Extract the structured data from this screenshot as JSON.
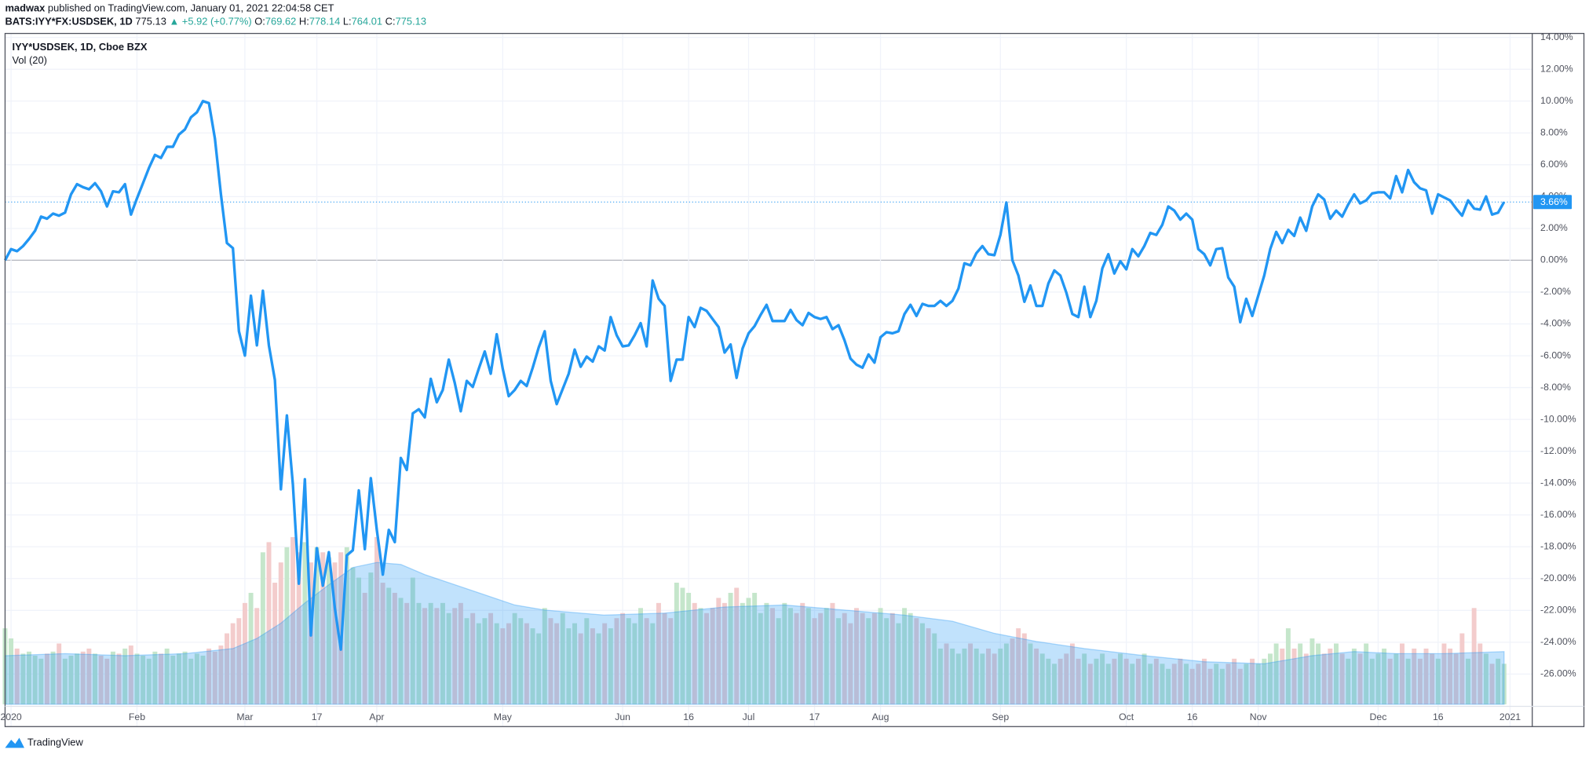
{
  "header": {
    "author": "madwax",
    "published": "published on TradingView.com, January 01, 2021 22:04:58 CET",
    "symbol": "BATS:IYY*FX:USDSEK, 1D",
    "last": "775.13",
    "change": "▲ +5.92 (+0.77%)",
    "ohlc": [
      {
        "label": "O:",
        "value": "769.62"
      },
      {
        "label": "H:",
        "value": "778.14"
      },
      {
        "label": "L:",
        "value": "764.01"
      },
      {
        "label": "C:",
        "value": "775.13"
      }
    ]
  },
  "chart_data": {
    "type": "line",
    "grid": true,
    "ylim": [
      -29.3,
      14.25
    ],
    "yticks": [
      {
        "value": -26,
        "label": "-26.00%"
      },
      {
        "value": -24,
        "label": "-24.00%"
      },
      {
        "value": -22,
        "label": "-22.00%"
      },
      {
        "value": -20,
        "label": "-20.00%"
      },
      {
        "value": -18,
        "label": "-18.00%"
      },
      {
        "value": -16,
        "label": "-16.00%"
      },
      {
        "value": -14,
        "label": "-14.00%"
      },
      {
        "value": -12,
        "label": "-12.00%"
      },
      {
        "value": -10,
        "label": "-10.00%"
      },
      {
        "value": -8,
        "label": "-8.00%"
      },
      {
        "value": -6,
        "label": "-6.00%"
      },
      {
        "value": -4,
        "label": "-4.00%"
      },
      {
        "value": -2,
        "label": "-2.00%"
      },
      {
        "value": 0,
        "label": "0.00%"
      },
      {
        "value": 2,
        "label": "2.00%"
      },
      {
        "value": 4,
        "label": "4.00%"
      },
      {
        "value": 6,
        "label": "6.00%"
      },
      {
        "value": 8,
        "label": "8.00%"
      },
      {
        "value": 10,
        "label": "10.00%"
      },
      {
        "value": 12,
        "label": "12.00%"
      },
      {
        "value": 14,
        "label": "14.00%"
      }
    ],
    "xlim": [
      0,
      254.7
    ],
    "xticks": [
      {
        "value": 1,
        "label": "2020"
      },
      {
        "value": 22,
        "label": "Feb"
      },
      {
        "value": 40,
        "label": "Mar"
      },
      {
        "value": 52,
        "label": "17"
      },
      {
        "value": 62,
        "label": "Apr"
      },
      {
        "value": 83,
        "label": "May"
      },
      {
        "value": 103,
        "label": "Jun"
      },
      {
        "value": 114,
        "label": "16"
      },
      {
        "value": 124,
        "label": "Jul"
      },
      {
        "value": 135,
        "label": "17"
      },
      {
        "value": 146,
        "label": "Aug"
      },
      {
        "value": 166,
        "label": "Sep"
      },
      {
        "value": 187,
        "label": "Oct"
      },
      {
        "value": 198,
        "label": "16"
      },
      {
        "value": 209,
        "label": "Nov"
      },
      {
        "value": 229,
        "label": "Dec"
      },
      {
        "value": 239,
        "label": "16"
      },
      {
        "value": 251,
        "label": "2021"
      }
    ],
    "last_value": {
      "value": 3.66,
      "label": "3.66%"
    },
    "series": [
      {
        "name": "IYY*USDSEK, 1D, Cboe BZX",
        "color": "#2196f3",
        "values": [
          0,
          0.7,
          0.57,
          0.89,
          1.34,
          1.85,
          2.74,
          2.61,
          2.93,
          2.8,
          2.99,
          4.14,
          4.78,
          4.59,
          4.46,
          4.84,
          4.33,
          3.38,
          4.33,
          4.27,
          4.78,
          2.87,
          3.89,
          4.84,
          5.8,
          6.62,
          6.43,
          7.13,
          7.13,
          7.9,
          8.22,
          8.98,
          9.3,
          10.0,
          9.87,
          7.64,
          4.14,
          1.08,
          0.76,
          -4.46,
          -5.99,
          -2.23,
          -5.35,
          -1.91,
          -5.35,
          -7.52,
          -14.39,
          -9.75,
          -14.08,
          -20.32,
          -13.76,
          -23.57,
          -18.09,
          -20.45,
          -18.34,
          -21.85,
          -24.46,
          -18.54,
          -18.22,
          -14.46,
          -18.15,
          -13.69,
          -16.94,
          -19.75,
          -16.94,
          -17.71,
          -12.42,
          -13.18,
          -9.62,
          -9.36,
          -9.87,
          -7.45,
          -8.92,
          -8.15,
          -6.24,
          -7.71,
          -9.49,
          -7.58,
          -7.96,
          -6.82,
          -5.73,
          -7.13,
          -4.65,
          -6.82,
          -8.54,
          -8.15,
          -7.58,
          -7.9,
          -6.75,
          -5.48,
          -4.46,
          -7.58,
          -9.04,
          -8.09,
          -7.13,
          -5.61,
          -6.69,
          -6.05,
          -6.37,
          -5.41,
          -5.67,
          -3.57,
          -4.71,
          -5.41,
          -5.35,
          -4.71,
          -3.95,
          -5.41,
          -1.27,
          -2.42,
          -2.87,
          -7.58,
          -6.24,
          -6.24,
          -3.57,
          -4.2,
          -2.99,
          -3.18,
          -3.69,
          -4.2,
          -5.8,
          -5.29,
          -7.39,
          -5.54,
          -4.59,
          -4.14,
          -3.44,
          -2.8,
          -3.82,
          -3.82,
          -3.82,
          -3.12,
          -3.76,
          -4.08,
          -3.31,
          -3.57,
          -3.69,
          -3.57,
          -4.33,
          -4.08,
          -5.03,
          -6.18,
          -6.56,
          -6.75,
          -5.92,
          -6.43,
          -4.84,
          -4.52,
          -4.59,
          -4.46,
          -3.38,
          -2.8,
          -3.5,
          -2.74,
          -2.87,
          -2.87,
          -2.55,
          -2.87,
          -2.55,
          -1.78,
          -0.19,
          -0.32,
          0.45,
          0.89,
          0.38,
          0.32,
          1.59,
          3.63,
          0,
          -0.96,
          -2.61,
          -1.59,
          -2.87,
          -2.87,
          -1.46,
          -0.64,
          -0.96,
          -2.04,
          -3.38,
          -3.57,
          -1.66,
          -3.57,
          -2.55,
          -0.51,
          0.38,
          -0.83,
          -0.06,
          -0.57,
          0.7,
          0.25,
          0.89,
          1.72,
          1.59,
          2.23,
          3.38,
          3.12,
          2.55,
          2.93,
          2.55,
          0.7,
          0.38,
          -0.32,
          0.7,
          0.76,
          -1.08,
          -1.66,
          -3.89,
          -2.42,
          -3.5,
          -2.23,
          -0.96,
          0.7,
          1.78,
          1.08,
          1.91,
          1.53,
          2.68,
          1.85,
          3.38,
          4.14,
          3.82,
          2.61,
          3.12,
          2.74,
          3.5,
          4.14,
          3.57,
          3.76,
          4.2,
          4.27,
          4.27,
          3.89,
          5.29,
          4.27,
          5.67,
          4.9,
          4.52,
          4.39,
          2.93,
          4.14,
          3.95,
          3.76,
          3.25,
          2.8,
          3.76,
          3.25,
          3.18,
          4.01,
          2.87,
          2.99,
          3.66
        ]
      },
      {
        "name": "Vol (20)",
        "type": "bar",
        "up_color": "#c5e6cb",
        "down_color": "#f3cccc",
        "values": [
          75,
          65,
          55,
          50,
          52,
          48,
          45,
          50,
          52,
          60,
          45,
          48,
          50,
          52,
          55,
          50,
          48,
          45,
          52,
          50,
          55,
          58,
          50,
          48,
          45,
          52,
          50,
          55,
          48,
          50,
          52,
          45,
          50,
          48,
          55,
          52,
          58,
          70,
          80,
          85,
          100,
          110,
          95,
          150,
          160,
          120,
          140,
          155,
          165,
          150,
          160,
          140,
          155,
          150,
          145,
          140,
          150,
          155,
          135,
          125,
          110,
          130,
          165,
          120,
          115,
          110,
          105,
          100,
          125,
          100,
          95,
          100,
          95,
          100,
          90,
          95,
          100,
          85,
          90,
          80,
          85,
          90,
          80,
          75,
          80,
          90,
          85,
          80,
          75,
          70,
          95,
          85,
          80,
          90,
          75,
          80,
          70,
          85,
          75,
          70,
          80,
          75,
          85,
          90,
          85,
          80,
          95,
          85,
          80,
          100,
          90,
          85,
          120,
          115,
          110,
          100,
          95,
          90,
          95,
          105,
          100,
          110,
          115,
          100,
          105,
          110,
          90,
          100,
          95,
          85,
          100,
          95,
          90,
          100,
          95,
          85,
          90,
          95,
          100,
          85,
          90,
          80,
          95,
          90,
          85,
          90,
          95,
          85,
          90,
          80,
          95,
          90,
          85,
          80,
          75,
          70,
          55,
          60,
          55,
          50,
          55,
          60,
          55,
          50,
          55,
          50,
          55,
          60,
          65,
          75,
          70,
          60,
          55,
          50,
          45,
          40,
          45,
          50,
          60,
          45,
          50,
          40,
          45,
          50,
          40,
          45,
          50,
          45,
          40,
          45,
          50,
          40,
          45,
          40,
          35,
          40,
          45,
          40,
          35,
          40,
          45,
          35,
          40,
          35,
          40,
          45,
          35,
          40,
          45,
          40,
          45,
          50,
          60,
          55,
          75,
          55,
          60,
          50,
          65,
          60,
          50,
          55,
          60,
          50,
          45,
          55,
          50,
          60,
          45,
          50,
          55,
          45,
          50,
          60,
          45,
          55,
          45,
          55,
          50,
          45,
          60,
          55,
          50,
          70,
          45,
          95,
          60,
          50,
          40,
          45,
          40
        ],
        "ma": {
          "color": "#2196f3",
          "x": [
            0,
            10,
            20,
            30,
            38,
            42,
            46,
            50,
            54,
            58,
            62,
            66,
            70,
            75,
            80,
            85,
            90,
            100,
            110,
            120,
            130,
            140,
            150,
            158,
            165,
            172,
            180,
            190,
            200,
            210,
            218,
            225,
            232,
            240,
            250
          ],
          "values": [
            48,
            50,
            48,
            50,
            55,
            65,
            80,
            100,
            118,
            135,
            140,
            138,
            128,
            118,
            108,
            98,
            93,
            88,
            90,
            96,
            98,
            93,
            88,
            82,
            70,
            62,
            55,
            48,
            42,
            40,
            48,
            52,
            50,
            50,
            52
          ]
        }
      }
    ]
  },
  "footer": {
    "brand": "TradingView"
  }
}
